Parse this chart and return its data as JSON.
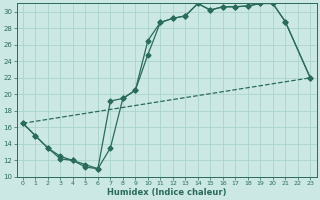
{
  "xlabel": "Humidex (Indice chaleur)",
  "background_color": "#cce8e4",
  "grid_color": "#aad4cc",
  "line_color": "#2a6b5a",
  "xlim": [
    -0.5,
    23.5
  ],
  "ylim": [
    10,
    31
  ],
  "xticks": [
    0,
    1,
    2,
    3,
    4,
    5,
    6,
    7,
    8,
    9,
    10,
    11,
    12,
    13,
    14,
    15,
    16,
    17,
    18,
    19,
    20,
    21,
    22,
    23
  ],
  "yticks": [
    10,
    12,
    14,
    16,
    18,
    20,
    22,
    24,
    26,
    28,
    30
  ],
  "line1_x": [
    0,
    1,
    2,
    3,
    4,
    5,
    6,
    7,
    8,
    9,
    10,
    11,
    12,
    13,
    14,
    15,
    16,
    17,
    18,
    19,
    20,
    21,
    23
  ],
  "line1_y": [
    16.5,
    15,
    13.5,
    12.5,
    12,
    11.2,
    11.0,
    19.2,
    19.5,
    20.5,
    26.5,
    28.7,
    29.2,
    29.5,
    31.0,
    30.2,
    30.6,
    30.6,
    30.7,
    31.0,
    31.0,
    28.8,
    22.0
  ],
  "line2_x": [
    0,
    1,
    2,
    3,
    4,
    5,
    6,
    7,
    8,
    9,
    10,
    11,
    12,
    13,
    14,
    15,
    16,
    17,
    18,
    19,
    20,
    21,
    23
  ],
  "line2_y": [
    16.5,
    15.0,
    13.5,
    12.2,
    12.0,
    11.5,
    11.0,
    13.5,
    19.5,
    20.5,
    24.8,
    28.7,
    29.2,
    29.5,
    31.0,
    30.2,
    30.6,
    30.6,
    30.7,
    31.0,
    31.0,
    28.8,
    22.0
  ],
  "line3_x": [
    0,
    23
  ],
  "line3_y": [
    16.5,
    22.0
  ]
}
